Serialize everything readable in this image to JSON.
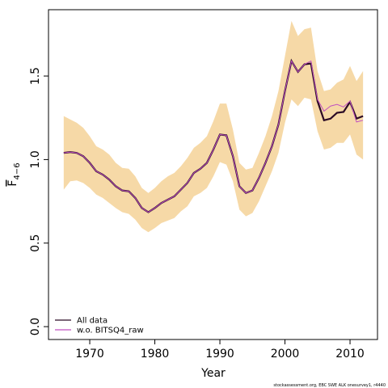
{
  "chart_data": {
    "type": "line",
    "xlabel": "Year",
    "ylabel": "F",
    "ylabel_sub": "4−6",
    "footnote": "stockassessment.org, EBC SWE ALK onesurvey1, r4440",
    "x": [
      1966,
      1967,
      1968,
      1969,
      1970,
      1971,
      1972,
      1973,
      1974,
      1975,
      1976,
      1977,
      1978,
      1979,
      1980,
      1981,
      1982,
      1983,
      1984,
      1985,
      1986,
      1987,
      1988,
      1989,
      1990,
      1991,
      1992,
      1993,
      1994,
      1995,
      1996,
      1997,
      1998,
      1999,
      2000,
      2001,
      2002,
      2003,
      2004,
      2005,
      2006,
      2007,
      2008,
      2009,
      2010,
      2011,
      2012
    ],
    "band": {
      "color": "#f6d9a7",
      "upper": [
        1.26,
        1.24,
        1.22,
        1.19,
        1.14,
        1.08,
        1.06,
        1.03,
        0.98,
        0.95,
        0.945,
        0.9,
        0.83,
        0.8,
        0.83,
        0.87,
        0.9,
        0.92,
        0.96,
        1.01,
        1.07,
        1.1,
        1.14,
        1.23,
        1.335,
        1.335,
        1.18,
        0.98,
        0.94,
        0.95,
        1.04,
        1.14,
        1.26,
        1.41,
        1.62,
        1.83,
        1.74,
        1.78,
        1.79,
        1.53,
        1.41,
        1.42,
        1.46,
        1.48,
        1.56,
        1.47,
        1.53
      ],
      "lower": [
        0.82,
        0.87,
        0.875,
        0.86,
        0.83,
        0.79,
        0.77,
        0.74,
        0.71,
        0.685,
        0.675,
        0.64,
        0.59,
        0.565,
        0.59,
        0.62,
        0.635,
        0.65,
        0.69,
        0.72,
        0.78,
        0.8,
        0.83,
        0.9,
        0.985,
        0.97,
        0.87,
        0.7,
        0.66,
        0.68,
        0.75,
        0.84,
        0.93,
        1.04,
        1.22,
        1.36,
        1.32,
        1.37,
        1.36,
        1.17,
        1.06,
        1.07,
        1.1,
        1.1,
        1.15,
        1.03,
        1.0
      ]
    },
    "series": [
      {
        "name": "All data",
        "color": "#2b0b26",
        "values": [
          1.04,
          1.045,
          1.04,
          1.02,
          0.98,
          0.93,
          0.91,
          0.88,
          0.84,
          0.815,
          0.81,
          0.77,
          0.71,
          0.685,
          0.71,
          0.74,
          0.76,
          0.78,
          0.82,
          0.86,
          0.92,
          0.945,
          0.98,
          1.06,
          1.15,
          1.145,
          1.02,
          0.84,
          0.8,
          0.815,
          0.89,
          0.98,
          1.08,
          1.21,
          1.41,
          1.59,
          1.525,
          1.57,
          1.575,
          1.35,
          1.235,
          1.245,
          1.28,
          1.285,
          1.345,
          1.245,
          1.26
        ]
      },
      {
        "name": "w.o. BITSQ4_raw",
        "color": "#c050c0",
        "values": [
          1.04,
          1.045,
          1.04,
          1.02,
          0.98,
          0.93,
          0.91,
          0.88,
          0.84,
          0.815,
          0.81,
          0.77,
          0.71,
          0.685,
          0.71,
          0.74,
          0.76,
          0.78,
          0.82,
          0.86,
          0.92,
          0.945,
          0.98,
          1.06,
          1.15,
          1.145,
          1.02,
          0.84,
          0.8,
          0.815,
          0.89,
          0.98,
          1.08,
          1.21,
          1.41,
          1.59,
          1.525,
          1.57,
          1.59,
          1.36,
          1.29,
          1.32,
          1.33,
          1.315,
          1.35,
          1.225,
          1.235
        ]
      }
    ],
    "xlim": [
      1963.66,
      2014.22
    ],
    "xticks": [
      1970,
      1980,
      1990,
      2000,
      2010
    ],
    "ylim": [
      -0.077,
      1.897
    ],
    "yticks": [
      {
        "value": 0,
        "label": "0.0"
      },
      {
        "value": 0.5,
        "label": "0.5"
      },
      {
        "value": 1,
        "label": "1.0"
      },
      {
        "value": 1.5,
        "label": "1.5"
      }
    ],
    "legend": "bottom-left"
  }
}
